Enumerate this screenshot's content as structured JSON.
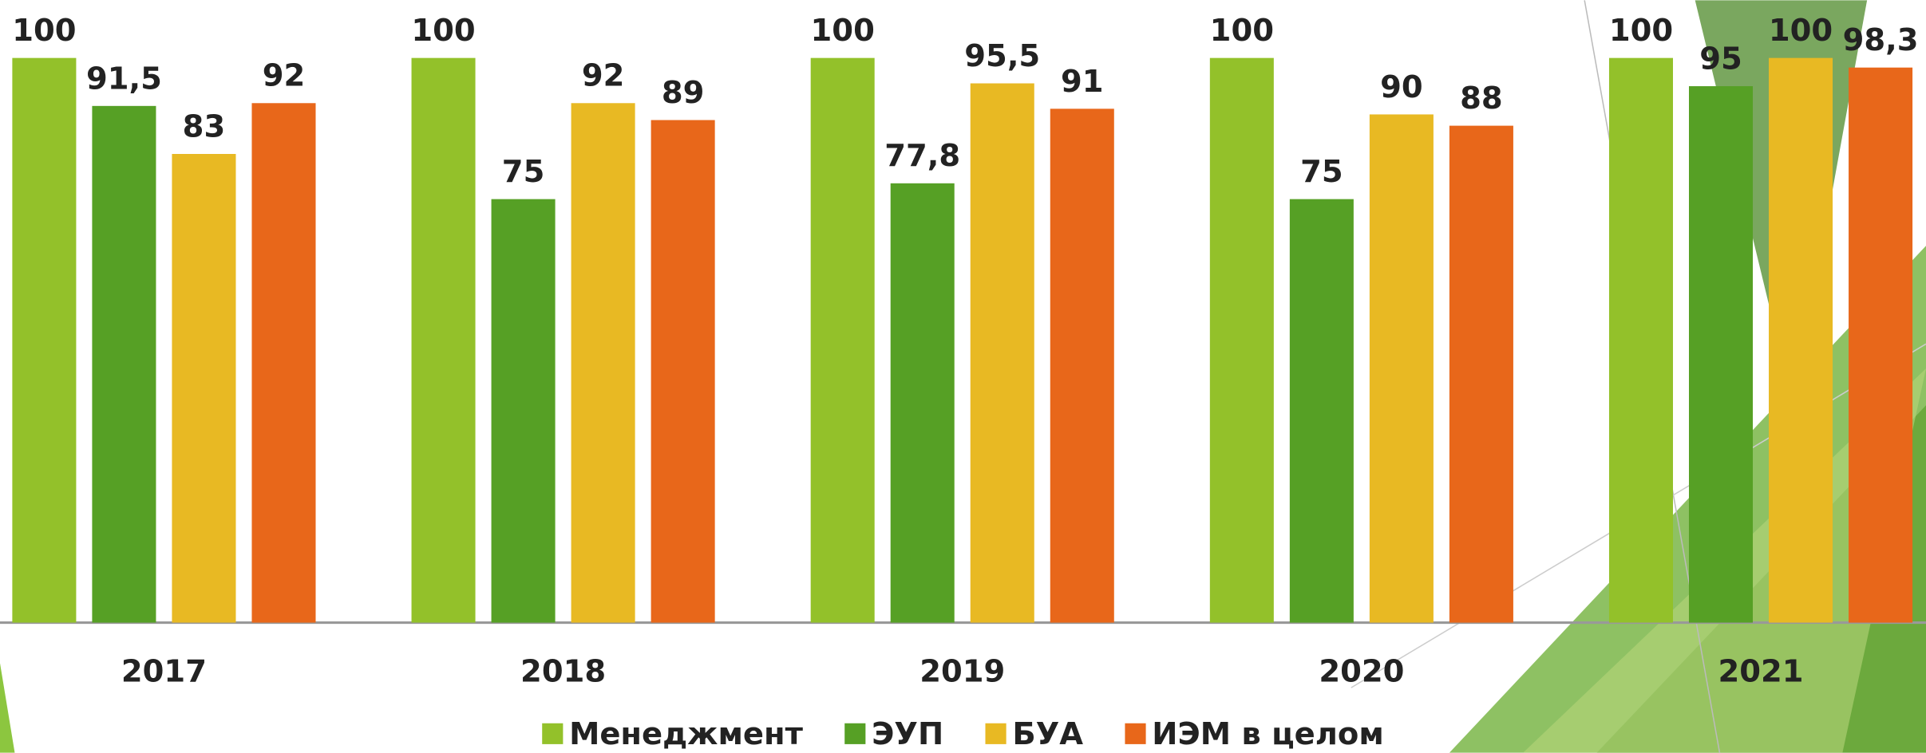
{
  "chart_data": {
    "type": "bar",
    "categories": [
      "2017",
      "2018",
      "2019",
      "2020",
      "2021"
    ],
    "series": [
      {
        "name": "Менеджмент",
        "color": "#93c12a",
        "values": [
          100,
          100,
          100,
          100,
          100
        ],
        "value_labels": [
          "100",
          "100",
          "100",
          "100",
          "100"
        ]
      },
      {
        "name": "ЭУП",
        "color": "#56a025",
        "values": [
          91.5,
          75,
          77.8,
          75,
          95
        ],
        "value_labels": [
          "91,5",
          "75",
          "77,8",
          "75",
          "95"
        ]
      },
      {
        "name": "БУА",
        "color": "#e8b923",
        "values": [
          83,
          92,
          95.5,
          90,
          100
        ],
        "value_labels": [
          "83",
          "92",
          "95,5",
          "90",
          "100"
        ]
      },
      {
        "name": "ИЭМ в целом",
        "color": "#e8671a",
        "values": [
          92,
          89,
          91,
          88,
          98.3
        ],
        "value_labels": [
          "92",
          "89",
          "91",
          "88",
          "98,3"
        ]
      }
    ],
    "legend": "bottom"
  }
}
